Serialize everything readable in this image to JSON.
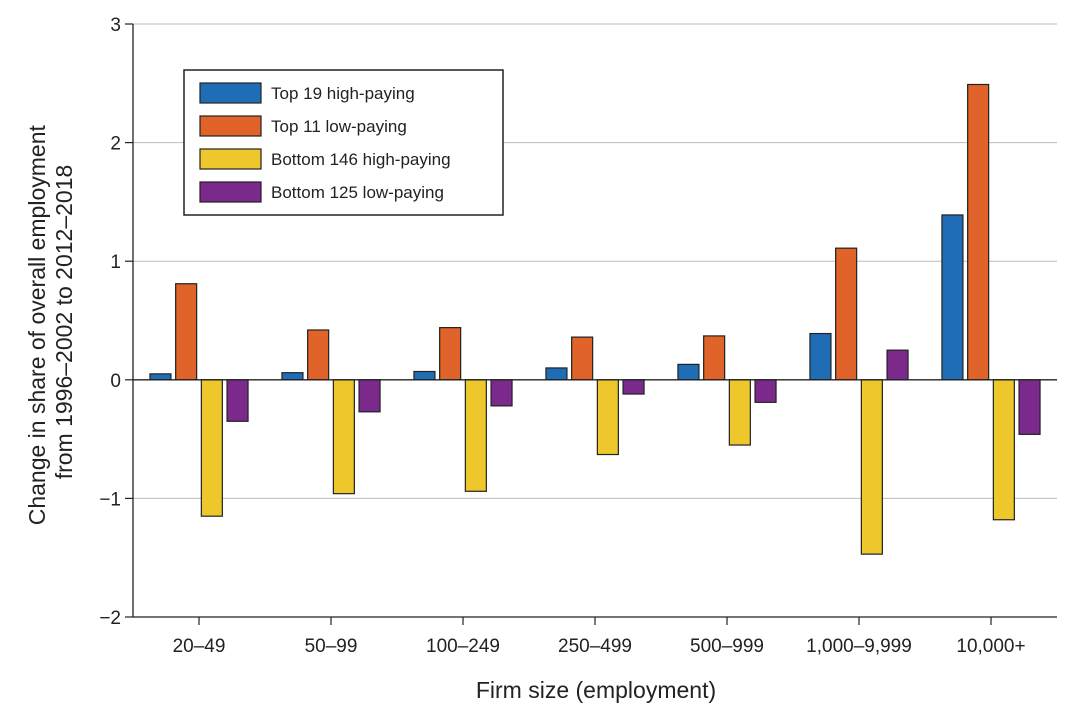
{
  "chart_data": {
    "type": "bar",
    "xlabel": "Firm size (employment)",
    "ylabel_lines": [
      "Change in share of overall employment",
      "from 1996–2002 to 2012–2018"
    ],
    "categories": [
      "20–49",
      "50–99",
      "100–249",
      "250–499",
      "500–999",
      "1,000–9,999",
      "10,000+"
    ],
    "ylim": [
      -2,
      3
    ],
    "yticks": [
      "−2",
      "−1",
      "0",
      "1",
      "2",
      "3"
    ],
    "grid": true,
    "legend_position": "top-left",
    "series": [
      {
        "name": "Top 19 high-paying",
        "color": "#1f6db5",
        "values": [
          0.05,
          0.06,
          0.07,
          0.1,
          0.13,
          0.39,
          1.39
        ]
      },
      {
        "name": "Top 11 low-paying",
        "color": "#e0632a",
        "values": [
          0.81,
          0.42,
          0.44,
          0.36,
          0.37,
          1.11,
          2.49
        ]
      },
      {
        "name": "Bottom 146 high-paying",
        "color": "#eec72d",
        "values": [
          -1.15,
          -0.96,
          -0.94,
          -0.63,
          -0.55,
          -1.47,
          -1.18
        ]
      },
      {
        "name": "Bottom 125 low-paying",
        "color": "#7b2a8c",
        "values": [
          -0.35,
          -0.27,
          -0.22,
          -0.12,
          -0.19,
          0.25,
          -0.46
        ]
      }
    ]
  }
}
